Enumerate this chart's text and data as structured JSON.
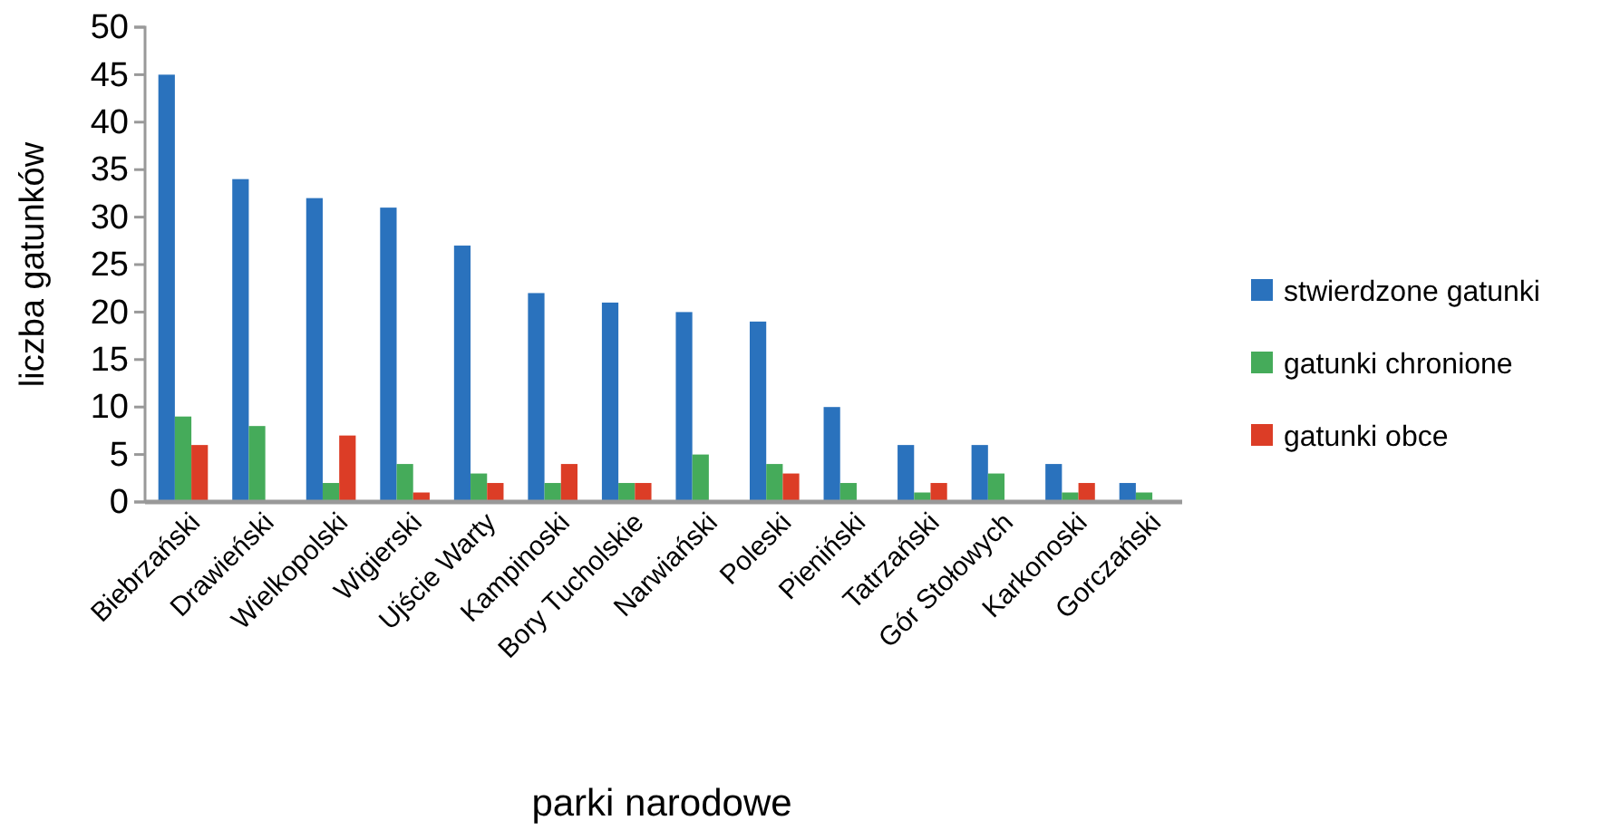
{
  "chart_data": {
    "type": "bar",
    "xlabel": "parki narodowe",
    "ylabel": "liczba gatunków",
    "categories": [
      "Biebrzański",
      "Drawieński",
      "Wielkopolski",
      "Wigierski",
      "Ujście Warty",
      "Kampinoski",
      "Bory Tucholskie",
      "Narwiański",
      "Poleski",
      "Pieniński",
      "Tatrzański",
      "Gór Stołowych",
      "Karkonoski",
      "Gorczański"
    ],
    "series": [
      {
        "name": "stwierdzone gatunki",
        "color": "#2a72bd",
        "values": [
          45,
          34,
          32,
          31,
          27,
          22,
          21,
          20,
          19,
          10,
          6,
          6,
          4,
          2
        ]
      },
      {
        "name": "gatunki chronione",
        "color": "#45ab5a",
        "values": [
          9,
          8,
          2,
          4,
          3,
          2,
          2,
          5,
          4,
          2,
          1,
          3,
          1,
          1
        ]
      },
      {
        "name": "gatunki obce",
        "color": "#dc3d26",
        "values": [
          6,
          0,
          7,
          1,
          2,
          4,
          2,
          0,
          3,
          0,
          2,
          0,
          2,
          0
        ]
      }
    ],
    "ylim": [
      0,
      50
    ],
    "yticks": [
      0,
      5,
      10,
      15,
      20,
      25,
      30,
      35,
      40,
      45,
      50
    ],
    "grid": false,
    "legend": "right"
  }
}
